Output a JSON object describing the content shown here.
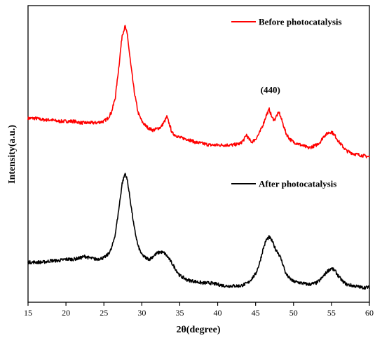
{
  "chart_data": {
    "type": "line",
    "xlabel": "2θ(degree)",
    "ylabel": "Intensity(a.u.)",
    "xlim": [
      15,
      60
    ],
    "xticks": [
      15,
      20,
      25,
      30,
      35,
      40,
      45,
      50,
      55,
      60
    ],
    "ylim": [
      0,
      100
    ],
    "y_ticks_shown": false,
    "grid": false,
    "legend": "top-right, each entry beside its curve",
    "annotations": [
      {
        "text": "(440)",
        "x": 47.5,
        "y": 72
      }
    ],
    "series": [
      {
        "name": "Before photocatalysis",
        "color": "#ff0000",
        "x": [
          15,
          16,
          17,
          18,
          19,
          20,
          21,
          22,
          23,
          24,
          25,
          25.5,
          26,
          26.5,
          27,
          27.4,
          27.8,
          28.1,
          28.5,
          29,
          29.5,
          30,
          30.5,
          31,
          31.5,
          32,
          32.5,
          33,
          33.3,
          33.7,
          34,
          35,
          36,
          37,
          38,
          39,
          40,
          41,
          42,
          43,
          43.5,
          43.8,
          44.1,
          44.5,
          45,
          45.5,
          46,
          46.4,
          46.8,
          47.2,
          47.5,
          47.8,
          48.1,
          48.5,
          49,
          49.5,
          50,
          51,
          52,
          53,
          53.5,
          54,
          54.5,
          55,
          55.5,
          56,
          56.5,
          57,
          58,
          59,
          60
        ],
        "y": [
          62,
          62,
          61.5,
          61.5,
          61,
          61,
          61,
          60.5,
          60.5,
          60.5,
          61,
          62,
          64,
          69,
          80,
          90,
          93,
          90,
          81,
          71,
          64,
          61,
          59.5,
          58.5,
          58,
          58.5,
          59,
          61,
          62.5,
          59.5,
          57,
          55.5,
          55,
          54,
          53.5,
          53,
          53,
          53,
          53,
          53.5,
          55,
          56.5,
          55,
          54,
          55,
          57,
          60,
          63,
          65,
          62,
          61.5,
          63,
          64,
          61,
          57,
          55,
          54,
          53,
          52,
          53,
          54,
          56,
          57,
          57.5,
          56,
          54,
          52.5,
          51,
          50,
          49.5,
          49
        ]
      },
      {
        "name": "After photocatalysis",
        "color": "#000000",
        "x": [
          15,
          16,
          17,
          18,
          19,
          20,
          21,
          22,
          22.5,
          23,
          24,
          25,
          25.5,
          26,
          26.5,
          27,
          27.4,
          27.8,
          28.1,
          28.5,
          29,
          29.5,
          30,
          30.5,
          31,
          31.5,
          32,
          32.5,
          33,
          33.5,
          34,
          35,
          36,
          37,
          38,
          39,
          40,
          41,
          42,
          43,
          44,
          45,
          45.5,
          46,
          46.4,
          46.8,
          47.2,
          47.6,
          47.9,
          48.3,
          48.7,
          49,
          49.5,
          50,
          51,
          52,
          53,
          53.5,
          54,
          54.5,
          55,
          55.5,
          56,
          56.5,
          57,
          58,
          59,
          60
        ],
        "y": [
          13.5,
          13.5,
          13.5,
          14,
          14,
          14.5,
          14.5,
          15,
          15.5,
          15,
          14.5,
          15,
          16,
          18,
          23,
          32,
          40,
          43.5,
          41,
          34,
          25,
          19,
          16,
          15,
          14.5,
          15.5,
          16.5,
          17,
          16.5,
          15,
          13,
          9,
          7.5,
          7,
          6.5,
          6.5,
          6,
          5.5,
          5.5,
          5.5,
          6.5,
          9.5,
          13,
          18,
          21,
          22,
          20.5,
          18,
          17,
          15,
          12,
          9.5,
          8,
          7,
          6.5,
          6,
          6.5,
          7.5,
          9,
          10.5,
          11.5,
          10.5,
          8.5,
          7,
          6,
          5.5,
          5,
          5
        ]
      }
    ]
  }
}
